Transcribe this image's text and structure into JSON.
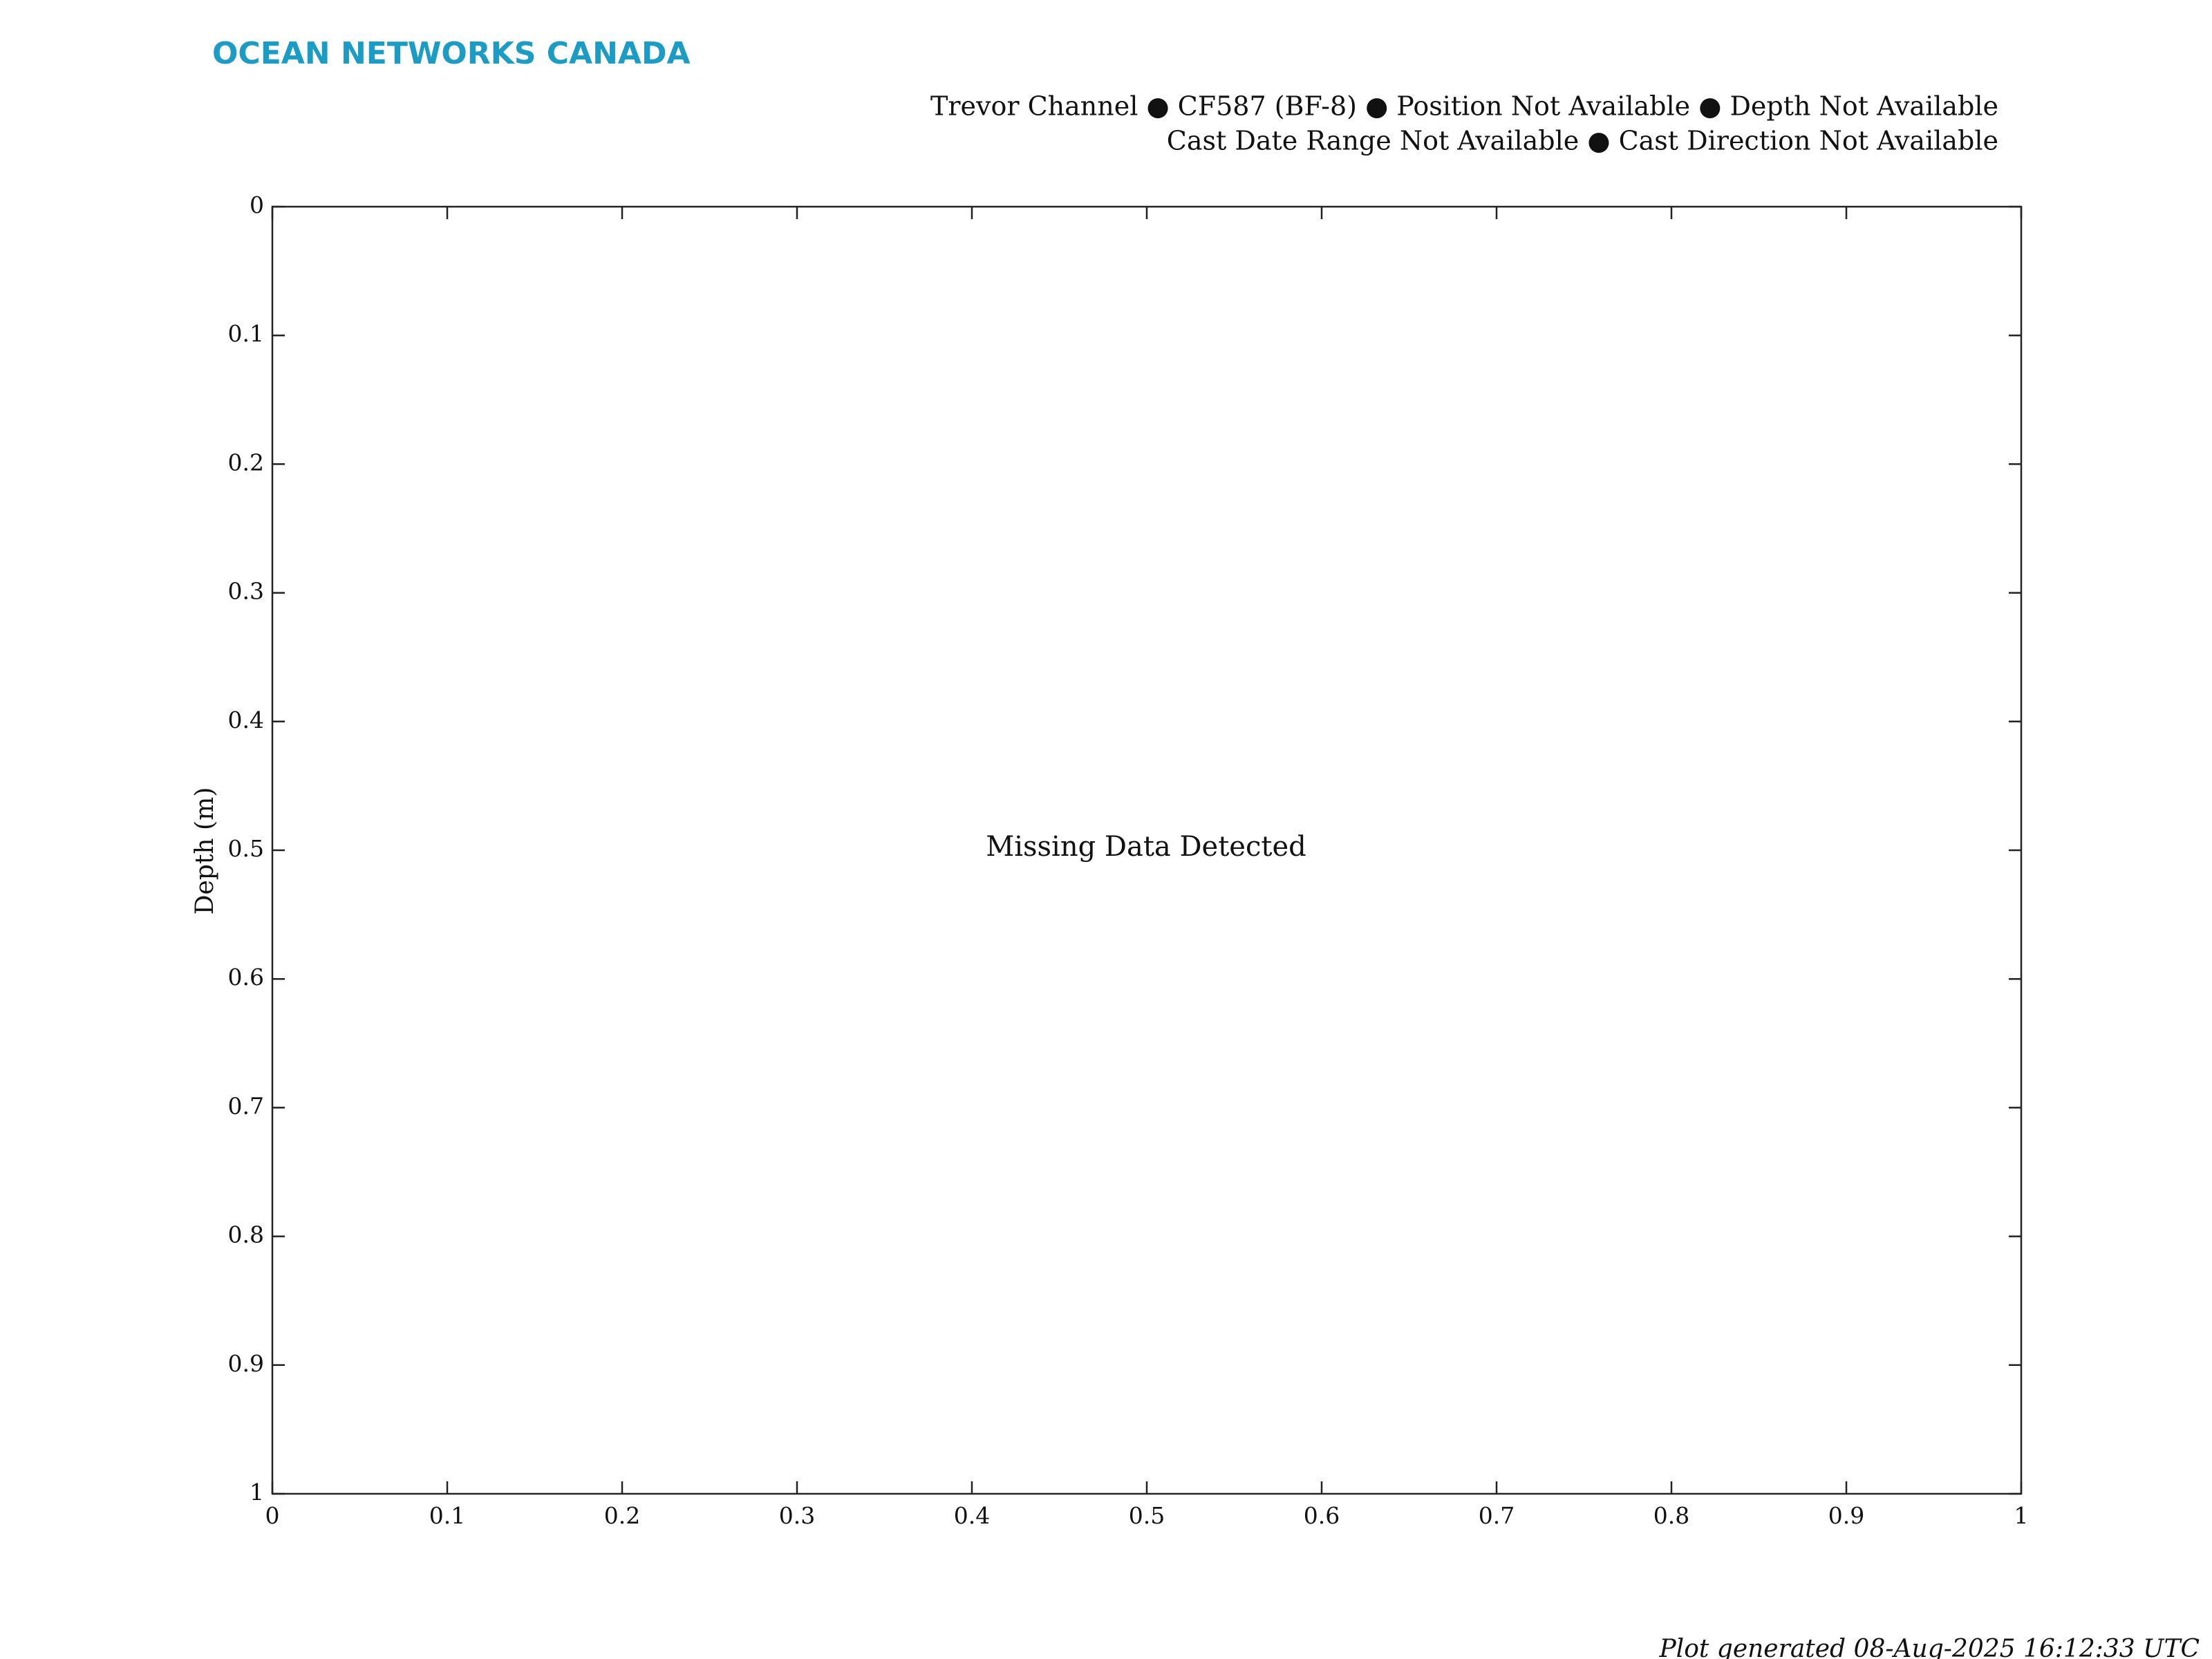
{
  "chart_data": {
    "type": "line",
    "brand": "OCEAN NETWORKS CANADA",
    "title": [
      "Trevor Channel ● CF587 (BF-8) ● Position Not Available ● Depth Not Available",
      "Cast Date Range Not Available ● Cast Direction Not Available"
    ],
    "ylabel": "Depth (m)",
    "annotation": "Missing Data Detected",
    "footer": "Plot generated 08-Aug-2025 16:12:33 UTC",
    "series": [],
    "xlim": [
      0,
      1
    ],
    "xticks": [
      0,
      0.1,
      0.2,
      0.3,
      0.4,
      0.5,
      0.6,
      0.7,
      0.8,
      0.9,
      1
    ],
    "ylim": [
      0,
      1
    ],
    "yticks": [
      0,
      0.1,
      0.2,
      0.3,
      0.4,
      0.5,
      0.6,
      0.7,
      0.8,
      0.9,
      1
    ],
    "y_reversed": true,
    "grid": false
  }
}
